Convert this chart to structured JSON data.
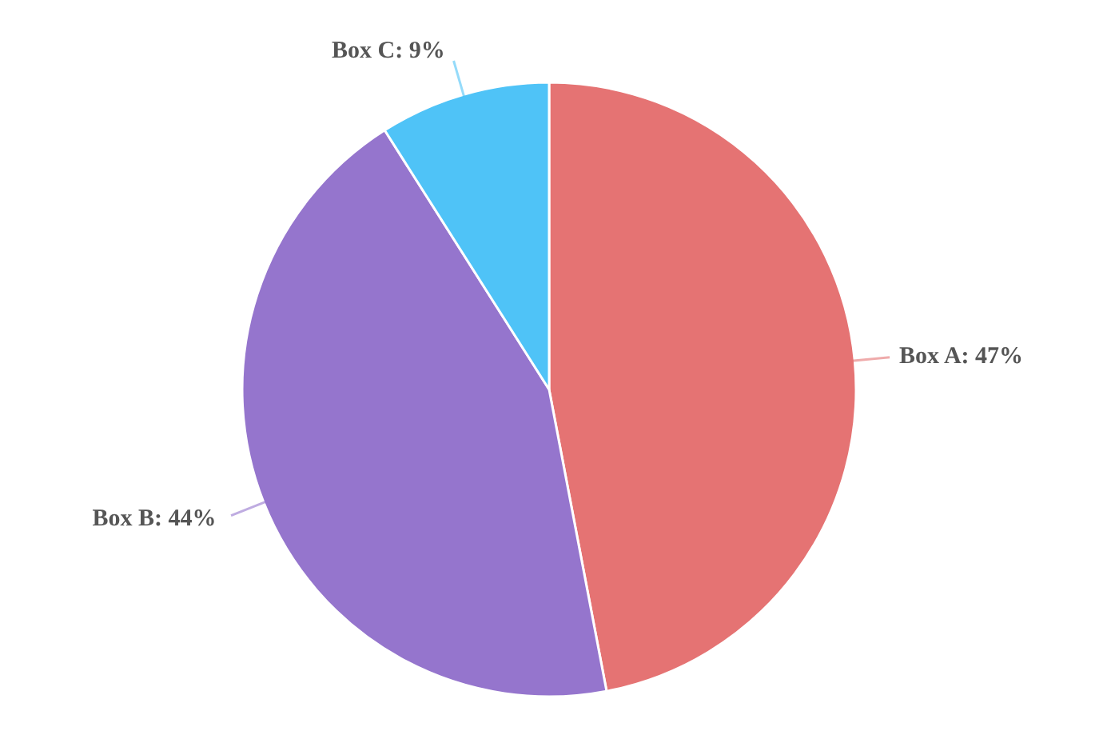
{
  "chart_data": {
    "type": "pie",
    "categories": [
      "Box A",
      "Box B",
      "Box C"
    ],
    "values": [
      47,
      44,
      9
    ],
    "colors": [
      "#e57373",
      "#9575cd",
      "#4fc3f7"
    ],
    "value_labels": [
      "47%",
      "44%",
      "9%"
    ],
    "legend": false
  }
}
